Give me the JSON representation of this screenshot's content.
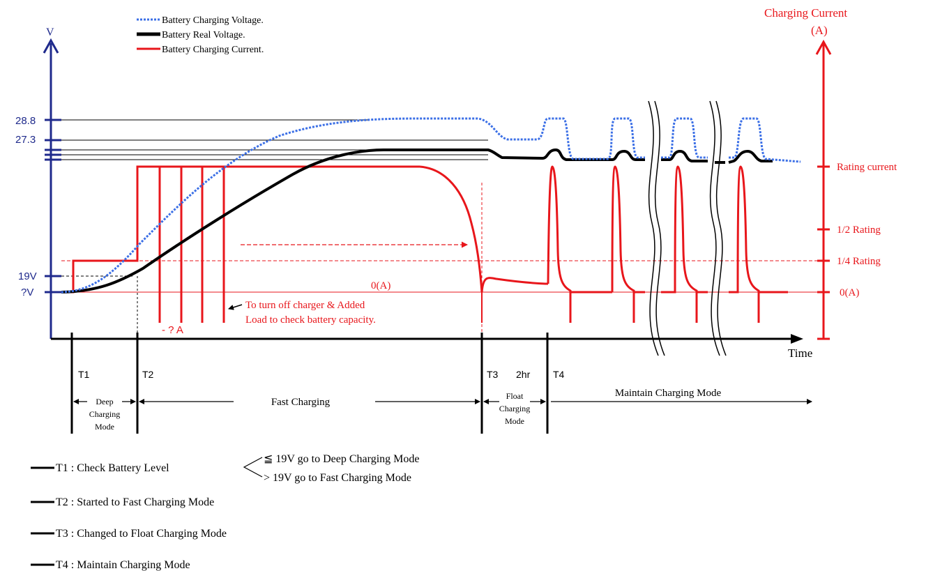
{
  "colors": {
    "voltage_axis": "#1f2a8c",
    "current_axis": "#e8161b",
    "charging_voltage": "#3b6fe6",
    "real_voltage": "#000000",
    "charging_current": "#e8161b"
  },
  "legend": {
    "charging_voltage": "Battery Charging Voltage.",
    "real_voltage": "Battery Real Voltage.",
    "charging_current": "Battery Charging Current."
  },
  "axes": {
    "left_label": "V",
    "right_label_line1": "Charging Current",
    "right_label_line2": "(A)",
    "x_label": "Time",
    "left_ticks": {
      "v288": "28.8",
      "v273": "27.3",
      "v19": "19V",
      "vq": "?V"
    },
    "right_ticks": {
      "rating": "Rating current",
      "half": "1/2 Rating",
      "quarter": "1/4 Rating",
      "zero": "0(A)"
    }
  },
  "annotations": {
    "zero_current": "0(A)",
    "negative_current": "- ? A",
    "load_note_line1": "To turn off charger & Added",
    "load_note_line2": "Load to check battery capacity."
  },
  "timeline": {
    "t1": "T1",
    "t2": "T2",
    "t3": "T3",
    "hours": "2hr",
    "t4": "T4",
    "deep_line1": "Deep",
    "deep_line2": "Charging",
    "deep_line3": "Mode",
    "fast": "Fast Charging",
    "float_line1": "Float",
    "float_line2": "Charging",
    "float_line3": "Mode",
    "maintain": "Maintain Charging Mode"
  },
  "notes": {
    "t1": "T1 : Check Battery Level",
    "t1_low": "≦ 19V go to Deep Charging Mode",
    "t1_high": "> 19V go to Fast Charging Mode",
    "t2": "T2 : Started to Fast Charging Mode",
    "t3": "T3 : Changed to Float Charging Mode",
    "t4": "T4 : Maintain Charging Mode"
  }
}
